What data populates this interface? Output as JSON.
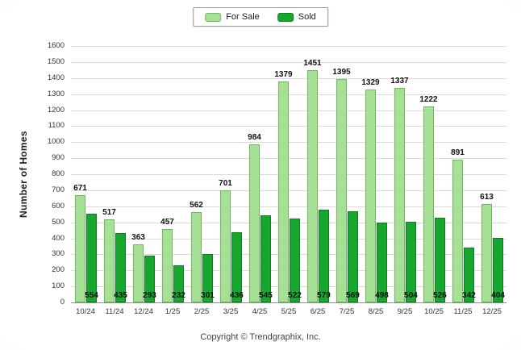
{
  "chart_data": {
    "type": "bar",
    "title": "",
    "categories": [
      "10/24",
      "11/24",
      "12/24",
      "1/25",
      "2/25",
      "3/25",
      "4/25",
      "5/25",
      "6/25",
      "7/25",
      "8/25",
      "9/25",
      "10/25",
      "11/25",
      "12/25"
    ],
    "series": [
      {
        "name": "For Sale",
        "color": "#A6DF96",
        "border_color": "#6db95c",
        "values": [
          671,
          517,
          363,
          457,
          562,
          701,
          984,
          1379,
          1451,
          1395,
          1329,
          1337,
          1222,
          891,
          613
        ]
      },
      {
        "name": "Sold",
        "color": "#17A62E",
        "border_color": "#0e7d20",
        "values": [
          554,
          435,
          293,
          232,
          301,
          436,
          545,
          522,
          579,
          569,
          498,
          504,
          526,
          342,
          404
        ]
      }
    ],
    "xlabel": "",
    "ylabel": "Number of Homes",
    "ylim": [
      0,
      1600
    ],
    "ytick_step": 100,
    "grid": true,
    "legend_position": "top-center",
    "value_labels": {
      "for_sale": "above-bar",
      "sold": "inside-bar-bottom"
    }
  },
  "footer": {
    "copyright": "Copyright © Trendgraphix, Inc."
  }
}
